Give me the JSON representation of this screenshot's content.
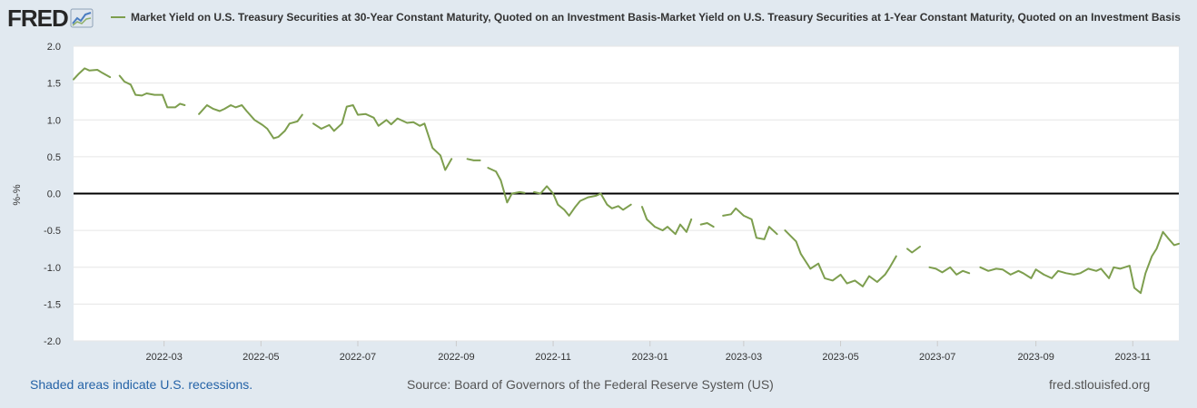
{
  "header": {
    "logo_text": "FRED",
    "legend_label": "Market Yield on U.S. Treasury Securities at 30-Year Constant Maturity, Quoted on an Investment Basis-Market Yield on U.S. Treasury Securities at 1-Year Constant Maturity, Quoted on an Investment Basis"
  },
  "footer": {
    "recession_note": "Shaded areas indicate U.S. recessions.",
    "source": "Source: Board of Governors of the Federal Reserve System (US)",
    "url": "fred.stlouisfed.org"
  },
  "colors": {
    "series": "#7d9e4e",
    "background": "#e1e9f0",
    "plot": "#ffffff",
    "grid": "#e6e6e6",
    "zero_line": "#000000"
  },
  "chart_data": {
    "type": "line",
    "title": "Market Yield on U.S. Treasury Securities at 30-Year Constant Maturity, Quoted on an Investment Basis-Market Yield on U.S. Treasury Securities at 1-Year Constant Maturity, Quoted on an Investment Basis",
    "xlabel": "",
    "ylabel": "%-%",
    "ylim": [
      -2.0,
      2.0
    ],
    "yticks": [
      "2.0",
      "1.5",
      "1.0",
      "0.5",
      "0.0",
      "-0.5",
      "-1.0",
      "-1.5",
      "-2.0"
    ],
    "xlim": [
      "2022-01-03",
      "2023-11-30"
    ],
    "xticks": [
      {
        "date": "2022-03-01",
        "label": "2022-03"
      },
      {
        "date": "2022-05-01",
        "label": "2022-05"
      },
      {
        "date": "2022-07-01",
        "label": "2022-07"
      },
      {
        "date": "2022-09-01",
        "label": "2022-09"
      },
      {
        "date": "2022-11-01",
        "label": "2022-11"
      },
      {
        "date": "2023-01-01",
        "label": "2023-01"
      },
      {
        "date": "2023-03-01",
        "label": "2023-03"
      },
      {
        "date": "2023-05-01",
        "label": "2023-05"
      },
      {
        "date": "2023-07-01",
        "label": "2023-07"
      },
      {
        "date": "2023-09-01",
        "label": "2023-09"
      },
      {
        "date": "2023-11-01",
        "label": "2023-11"
      }
    ],
    "grid": true,
    "zero_line": true,
    "legend_position": "top-left",
    "series": [
      {
        "name": "Market Yield on U.S. Treasury Securities at 30-Year Constant Maturity, Quoted on an Investment Basis-Market Yield on U.S. Treasury Securities at 1-Year Constant Maturity, Quoted on an Investment Basis",
        "points": [
          [
            "2022-01-03",
            1.55
          ],
          [
            "2022-01-06",
            1.62
          ],
          [
            "2022-01-10",
            1.7
          ],
          [
            "2022-01-13",
            1.67
          ],
          [
            "2022-01-18",
            1.68
          ],
          [
            "2022-01-21",
            1.64
          ],
          [
            "2022-01-26",
            1.58
          ],
          null,
          [
            "2022-02-01",
            1.6
          ],
          [
            "2022-02-04",
            1.52
          ],
          [
            "2022-02-08",
            1.48
          ],
          [
            "2022-02-11",
            1.34
          ],
          [
            "2022-02-15",
            1.33
          ],
          [
            "2022-02-18",
            1.36
          ],
          [
            "2022-02-23",
            1.34
          ],
          [
            "2022-02-28",
            1.34
          ],
          [
            "2022-03-03",
            1.17
          ],
          [
            "2022-03-08",
            1.17
          ],
          [
            "2022-03-11",
            1.22
          ],
          [
            "2022-03-14",
            1.2
          ],
          null,
          [
            "2022-03-23",
            1.08
          ],
          [
            "2022-03-28",
            1.2
          ],
          [
            "2022-04-01",
            1.15
          ],
          [
            "2022-04-05",
            1.12
          ],
          [
            "2022-04-08",
            1.15
          ],
          [
            "2022-04-12",
            1.2
          ],
          [
            "2022-04-15",
            1.17
          ],
          [
            "2022-04-19",
            1.2
          ],
          [
            "2022-04-22",
            1.12
          ],
          [
            "2022-04-27",
            1.0
          ],
          [
            "2022-05-02",
            0.93
          ],
          [
            "2022-05-05",
            0.88
          ],
          [
            "2022-05-09",
            0.75
          ],
          [
            "2022-05-12",
            0.77
          ],
          [
            "2022-05-16",
            0.85
          ],
          [
            "2022-05-19",
            0.95
          ],
          [
            "2022-05-24",
            0.98
          ],
          [
            "2022-05-27",
            1.07
          ],
          null,
          [
            "2022-06-03",
            0.95
          ],
          [
            "2022-06-08",
            0.88
          ],
          [
            "2022-06-13",
            0.93
          ],
          [
            "2022-06-16",
            0.85
          ],
          [
            "2022-06-21",
            0.95
          ],
          [
            "2022-06-24",
            1.18
          ],
          [
            "2022-06-28",
            1.2
          ],
          [
            "2022-07-01",
            1.07
          ],
          [
            "2022-07-06",
            1.08
          ],
          [
            "2022-07-11",
            1.03
          ],
          [
            "2022-07-14",
            0.92
          ],
          [
            "2022-07-19",
            1.0
          ],
          [
            "2022-07-22",
            0.94
          ],
          [
            "2022-07-26",
            1.02
          ],
          [
            "2022-08-01",
            0.96
          ],
          [
            "2022-08-05",
            0.97
          ],
          [
            "2022-08-09",
            0.92
          ],
          [
            "2022-08-12",
            0.95
          ],
          [
            "2022-08-17",
            0.62
          ],
          [
            "2022-08-22",
            0.52
          ],
          [
            "2022-08-25",
            0.32
          ],
          [
            "2022-08-29",
            0.47
          ],
          null,
          [
            "2022-09-08",
            0.47
          ],
          [
            "2022-09-12",
            0.45
          ],
          [
            "2022-09-16",
            0.45
          ],
          null,
          [
            "2022-09-21",
            0.35
          ],
          [
            "2022-09-26",
            0.3
          ],
          [
            "2022-09-29",
            0.18
          ],
          [
            "2022-10-03",
            -0.12
          ],
          [
            "2022-10-06",
            0.0
          ],
          [
            "2022-10-11",
            0.02
          ],
          [
            "2022-10-14",
            0.01
          ],
          null,
          [
            "2022-10-20",
            0.02
          ],
          [
            "2022-10-24",
            0.0
          ],
          [
            "2022-10-28",
            0.1
          ],
          [
            "2022-11-01",
            0.0
          ],
          [
            "2022-11-04",
            -0.15
          ],
          [
            "2022-11-08",
            -0.22
          ],
          [
            "2022-11-11",
            -0.3
          ],
          [
            "2022-11-15",
            -0.18
          ],
          [
            "2022-11-18",
            -0.1
          ],
          [
            "2022-11-23",
            -0.05
          ],
          [
            "2022-11-28",
            -0.03
          ],
          [
            "2022-12-01",
            0.0
          ],
          [
            "2022-12-05",
            -0.15
          ],
          [
            "2022-12-08",
            -0.2
          ],
          [
            "2022-12-12",
            -0.17
          ],
          [
            "2022-12-15",
            -0.22
          ],
          [
            "2022-12-20",
            -0.15
          ],
          null,
          [
            "2022-12-27",
            -0.18
          ],
          [
            "2022-12-30",
            -0.35
          ],
          [
            "2023-01-04",
            -0.45
          ],
          [
            "2023-01-09",
            -0.5
          ],
          [
            "2023-01-12",
            -0.45
          ],
          [
            "2023-01-17",
            -0.55
          ],
          [
            "2023-01-20",
            -0.42
          ],
          [
            "2023-01-24",
            -0.52
          ],
          [
            "2023-01-27",
            -0.35
          ],
          null,
          [
            "2023-02-02",
            -0.42
          ],
          [
            "2023-02-06",
            -0.4
          ],
          [
            "2023-02-10",
            -0.45
          ],
          null,
          [
            "2023-02-16",
            -0.3
          ],
          [
            "2023-02-21",
            -0.28
          ],
          [
            "2023-02-24",
            -0.2
          ],
          [
            "2023-03-01",
            -0.3
          ],
          [
            "2023-03-06",
            -0.35
          ],
          [
            "2023-03-09",
            -0.6
          ],
          [
            "2023-03-14",
            -0.62
          ],
          [
            "2023-03-17",
            -0.45
          ],
          [
            "2023-03-22",
            -0.55
          ],
          null,
          [
            "2023-03-27",
            -0.5
          ],
          [
            "2023-04-03",
            -0.65
          ],
          [
            "2023-04-06",
            -0.82
          ],
          [
            "2023-04-12",
            -1.02
          ],
          [
            "2023-04-17",
            -0.95
          ],
          [
            "2023-04-21",
            -1.15
          ],
          [
            "2023-04-26",
            -1.18
          ],
          [
            "2023-05-01",
            -1.1
          ],
          [
            "2023-05-05",
            -1.22
          ],
          [
            "2023-05-10",
            -1.18
          ],
          [
            "2023-05-15",
            -1.26
          ],
          [
            "2023-05-19",
            -1.12
          ],
          [
            "2023-05-24",
            -1.2
          ],
          [
            "2023-05-29",
            -1.1
          ],
          [
            "2023-06-01",
            -1.0
          ],
          [
            "2023-06-05",
            -0.85
          ],
          null,
          [
            "2023-06-12",
            -0.75
          ],
          [
            "2023-06-15",
            -0.8
          ],
          [
            "2023-06-20",
            -0.72
          ],
          null,
          [
            "2023-06-26",
            -1.0
          ],
          [
            "2023-06-30",
            -1.02
          ],
          [
            "2023-07-04",
            -1.07
          ],
          [
            "2023-07-09",
            -1.0
          ],
          [
            "2023-07-13",
            -1.1
          ],
          [
            "2023-07-17",
            -1.05
          ],
          [
            "2023-07-21",
            -1.08
          ],
          null,
          [
            "2023-07-28",
            -1.0
          ],
          [
            "2023-08-02",
            -1.05
          ],
          [
            "2023-08-07",
            -1.02
          ],
          [
            "2023-08-11",
            -1.03
          ],
          [
            "2023-08-16",
            -1.1
          ],
          [
            "2023-08-21",
            -1.05
          ],
          [
            "2023-08-24",
            -1.08
          ],
          [
            "2023-08-29",
            -1.15
          ],
          [
            "2023-09-01",
            -1.03
          ],
          [
            "2023-09-06",
            -1.1
          ],
          [
            "2023-09-11",
            -1.15
          ],
          [
            "2023-09-15",
            -1.05
          ],
          [
            "2023-09-20",
            -1.08
          ],
          [
            "2023-09-25",
            -1.1
          ],
          [
            "2023-09-29",
            -1.08
          ],
          [
            "2023-10-04",
            -1.02
          ],
          [
            "2023-10-09",
            -1.05
          ],
          [
            "2023-10-12",
            -1.02
          ],
          [
            "2023-10-17",
            -1.15
          ],
          [
            "2023-10-20",
            -1.0
          ],
          [
            "2023-10-24",
            -1.02
          ],
          [
            "2023-10-30",
            -0.98
          ],
          [
            "2023-11-02",
            -1.28
          ],
          [
            "2023-11-06",
            -1.35
          ],
          [
            "2023-11-09",
            -1.08
          ],
          [
            "2023-11-13",
            -0.85
          ],
          [
            "2023-11-16",
            -0.75
          ],
          [
            "2023-11-20",
            -0.52
          ],
          [
            "2023-11-23",
            -0.6
          ],
          [
            "2023-11-27",
            -0.7
          ],
          [
            "2023-11-30",
            -0.68
          ]
        ]
      }
    ]
  }
}
